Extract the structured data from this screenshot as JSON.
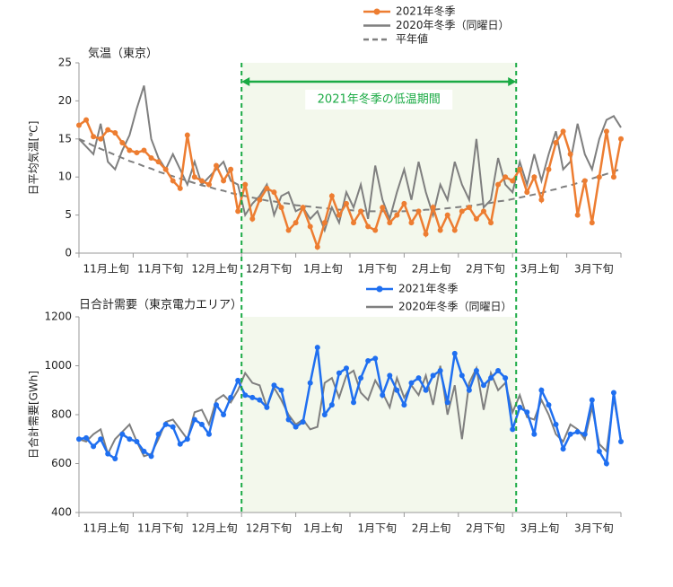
{
  "chart_data": [
    {
      "type": "line",
      "title": "気温（東京）",
      "ylabel": "日平均気温[℃]",
      "x": [
        0,
        2,
        4,
        6,
        8,
        10,
        12,
        14,
        16,
        18,
        20,
        22,
        24,
        26,
        28,
        30,
        32,
        34,
        36,
        38,
        40,
        42,
        44,
        46,
        48,
        50,
        52,
        54,
        56,
        58,
        60,
        62,
        64,
        66,
        68,
        70,
        72,
        74,
        76,
        78,
        80,
        82,
        84,
        86,
        88,
        90,
        92,
        94,
        96,
        98,
        100,
        102,
        104,
        106,
        108,
        110,
        112,
        114,
        116,
        118,
        120,
        122,
        124,
        126,
        128,
        130,
        132,
        134,
        136,
        138,
        140,
        142,
        144,
        146,
        148,
        150
      ],
      "xlim": [
        0,
        150
      ],
      "xticks": [
        {
          "value": 7.5,
          "label": "11月上旬"
        },
        {
          "value": 22.5,
          "label": "11月下旬"
        },
        {
          "value": 37.5,
          "label": "12月上旬"
        },
        {
          "value": 52.5,
          "label": "12月下旬"
        },
        {
          "value": 67.5,
          "label": "1月上旬"
        },
        {
          "value": 82.5,
          "label": "1月下旬"
        },
        {
          "value": 97.5,
          "label": "2月上旬"
        },
        {
          "value": 112.5,
          "label": "2月下旬"
        },
        {
          "value": 127.5,
          "label": "3月上旬"
        },
        {
          "value": 142.5,
          "label": "3月下旬"
        }
      ],
      "ylim": [
        0,
        25
      ],
      "yticks": [
        0,
        5,
        10,
        15,
        20,
        25
      ],
      "span": {
        "label": "2021年冬季の低温期間",
        "from": 45,
        "to": 121,
        "color": "#1aaa44"
      },
      "series": [
        {
          "name": "2021年冬季",
          "color": "#ed7d31",
          "marker": true,
          "style": "solid",
          "values": [
            16.8,
            17.5,
            15.3,
            15,
            16.2,
            15.8,
            14.5,
            13.5,
            13.2,
            13.5,
            12.5,
            12,
            11,
            9.5,
            8.5,
            15.5,
            10,
            9.5,
            9,
            11.5,
            9.5,
            11,
            5.5,
            9,
            4.5,
            7,
            8.5,
            8,
            6,
            3,
            4,
            6,
            3.5,
            0.8,
            4,
            7.5,
            5,
            6.5,
            4,
            5.5,
            3.5,
            3,
            6,
            4,
            5,
            6.5,
            4,
            5.5,
            2.5,
            6,
            3,
            5,
            3,
            5.5,
            6,
            4.5,
            5.5,
            4,
            9,
            10,
            9.5,
            11,
            8,
            10,
            7,
            11,
            14.5,
            16,
            13,
            5,
            9.5,
            4,
            10,
            16,
            10,
            15
          ]
        },
        {
          "name": "2020年冬季（同曜日）",
          "color": "#7f7f7f",
          "marker": false,
          "style": "solid",
          "values": [
            15,
            14,
            13,
            17,
            12,
            11,
            13.5,
            15.5,
            19,
            22,
            15,
            12.5,
            11,
            13,
            11,
            9,
            12,
            9,
            10,
            11,
            12,
            9.5,
            9,
            5,
            6.5,
            7.5,
            9,
            5,
            7.5,
            8,
            5.5,
            6,
            4.5,
            5.5,
            3,
            6,
            4,
            8,
            6,
            9,
            4.5,
            11.5,
            7,
            4.5,
            8,
            11,
            7,
            12,
            8,
            5,
            9,
            7,
            12,
            9,
            7,
            15,
            6,
            7,
            12.5,
            9,
            8,
            12,
            9,
            13,
            9.5,
            13,
            16,
            11,
            12,
            17,
            13,
            11,
            15,
            17.5,
            18,
            16.5
          ]
        },
        {
          "name": "平年値",
          "color": "#7f7f7f",
          "marker": false,
          "style": "dashed",
          "values": [
            15,
            14.6,
            14.1,
            13.7,
            13.3,
            12.9,
            12.5,
            12.1,
            11.8,
            11.4,
            11.1,
            10.7,
            10.4,
            10.1,
            9.8,
            9.5,
            9.2,
            8.9,
            8.7,
            8.4,
            8.2,
            7.9,
            7.7,
            7.5,
            7.3,
            7.1,
            6.9,
            6.8,
            6.6,
            6.5,
            6.3,
            6.2,
            6.1,
            6,
            5.9,
            5.8,
            5.7,
            5.7,
            5.6,
            5.6,
            5.5,
            5.5,
            5.5,
            5.5,
            5.5,
            5.5,
            5.6,
            5.6,
            5.7,
            5.7,
            5.8,
            5.9,
            6,
            6.1,
            6.2,
            6.3,
            6.5,
            6.6,
            6.8,
            6.9,
            7.1,
            7.3,
            7.5,
            7.7,
            7.9,
            8.2,
            8.4,
            8.7,
            8.9,
            9.2,
            9.5,
            9.8,
            10.1,
            10.4,
            10.7,
            11.1
          ]
        }
      ]
    },
    {
      "type": "line",
      "title": "日合計需要（東京電力エリア）",
      "ylabel": "日合計需要[GWh]",
      "x": [
        0,
        2,
        4,
        6,
        8,
        10,
        12,
        14,
        16,
        18,
        20,
        22,
        24,
        26,
        28,
        30,
        32,
        34,
        36,
        38,
        40,
        42,
        44,
        46,
        48,
        50,
        52,
        54,
        56,
        58,
        60,
        62,
        64,
        66,
        68,
        70,
        72,
        74,
        76,
        78,
        80,
        82,
        84,
        86,
        88,
        90,
        92,
        94,
        96,
        98,
        100,
        102,
        104,
        106,
        108,
        110,
        112,
        114,
        116,
        118,
        120,
        122,
        124,
        126,
        128,
        130,
        132,
        134,
        136,
        138,
        140,
        142,
        144,
        146,
        148,
        150
      ],
      "xlim": [
        0,
        150
      ],
      "xticks": [
        {
          "value": 7.5,
          "label": "11月上旬"
        },
        {
          "value": 22.5,
          "label": "11月下旬"
        },
        {
          "value": 37.5,
          "label": "12月上旬"
        },
        {
          "value": 52.5,
          "label": "12月下旬"
        },
        {
          "value": 67.5,
          "label": "1月上旬"
        },
        {
          "value": 82.5,
          "label": "1月下旬"
        },
        {
          "value": 97.5,
          "label": "2月上旬"
        },
        {
          "value": 112.5,
          "label": "2月下旬"
        },
        {
          "value": 127.5,
          "label": "3月上旬"
        },
        {
          "value": 142.5,
          "label": "3月下旬"
        }
      ],
      "ylim": [
        400,
        1200
      ],
      "yticks": [
        400,
        600,
        800,
        1000,
        1200
      ],
      "series": [
        {
          "name": "2021年冬季",
          "color": "#1f6ff0",
          "marker": true,
          "style": "solid",
          "values": [
            700,
            705,
            670,
            700,
            640,
            620,
            720,
            700,
            690,
            650,
            630,
            720,
            760,
            750,
            680,
            700,
            780,
            760,
            720,
            840,
            800,
            870,
            940,
            880,
            870,
            860,
            830,
            920,
            900,
            780,
            750,
            770,
            930,
            1075,
            800,
            840,
            970,
            990,
            850,
            950,
            1020,
            1030,
            880,
            960,
            900,
            840,
            930,
            950,
            900,
            960,
            980,
            850,
            1050,
            960,
            900,
            980,
            920,
            950,
            980,
            950,
            740,
            830,
            810,
            720,
            900,
            840,
            760,
            660,
            720,
            730,
            720,
            860,
            650,
            600,
            890,
            690
          ]
        },
        {
          "name": "2020年冬季（同曜日）",
          "color": "#7f7f7f",
          "marker": false,
          "style": "solid",
          "values": [
            700,
            690,
            720,
            740,
            640,
            700,
            730,
            760,
            690,
            630,
            640,
            700,
            770,
            780,
            740,
            700,
            810,
            820,
            760,
            860,
            880,
            850,
            900,
            970,
            930,
            920,
            830,
            910,
            860,
            800,
            760,
            780,
            740,
            750,
            930,
            950,
            870,
            960,
            980,
            890,
            860,
            940,
            890,
            830,
            950,
            870,
            920,
            880,
            960,
            840,
            1000,
            800,
            920,
            700,
            930,
            990,
            820,
            970,
            900,
            930,
            810,
            880,
            790,
            780,
            860,
            800,
            720,
            690,
            760,
            740,
            700,
            830,
            680,
            650,
            870,
            700
          ]
        }
      ]
    }
  ]
}
